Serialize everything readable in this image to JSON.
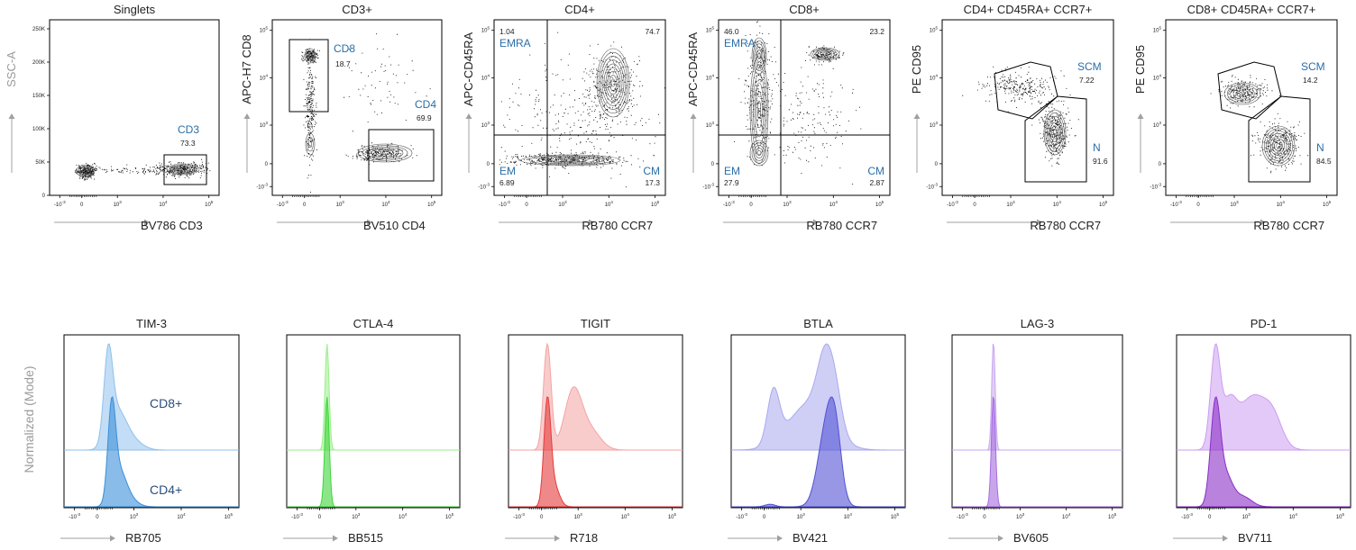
{
  "colors": {
    "frame": "#000000",
    "gate_label": "#2a6ea8",
    "arrow": "#a0a0a0",
    "side_label": "#9a9a9a",
    "contour": "#555555",
    "dots": "#000000"
  },
  "labels": {
    "tick_neg3": "-10",
    "tick_0": "0",
    "tick_3": "10",
    "tick_4": "10",
    "tick_5": "10",
    "exp_neg3": "-3",
    "exp_3": "3",
    "exp_4": "4",
    "exp_5": "5",
    "ssc_ticks": [
      "250K",
      "200K",
      "150K",
      "100K",
      "50K",
      "0"
    ],
    "hist_side_label": "Normalized (Mode)"
  },
  "chart_data": [
    {
      "id": "singlets",
      "type": "scatter",
      "title": "Singlets",
      "xlabel": "BV786 CD3",
      "ylabel": "SSC-A",
      "xscale": "biexponential",
      "yscale": "linear",
      "ylim": [
        0,
        262144
      ],
      "gates": [
        {
          "name": "CD3",
          "value": "73.3"
        }
      ]
    },
    {
      "id": "cd3",
      "type": "scatter",
      "title": "CD3+",
      "xlabel": "BV510 CD4",
      "ylabel": "APC-H7 CD8",
      "xscale": "biexponential",
      "yscale": "biexponential",
      "gates": [
        {
          "name": "CD8",
          "value": "18.7"
        },
        {
          "name": "CD4",
          "value": "69.9"
        }
      ]
    },
    {
      "id": "cd4",
      "type": "scatter",
      "title": "CD4+",
      "xlabel": "RB780 CCR7",
      "ylabel": "APC-CD45RA",
      "xscale": "biexponential",
      "yscale": "biexponential",
      "quadrants": [
        {
          "name": "EMRA",
          "value": "1.04",
          "position": "top-left"
        },
        {
          "name": "",
          "value": "74.7",
          "position": "top-right"
        },
        {
          "name": "EM",
          "value": "6.89",
          "position": "bottom-left"
        },
        {
          "name": "CM",
          "value": "17.3",
          "position": "bottom-right"
        }
      ]
    },
    {
      "id": "cd8",
      "type": "scatter",
      "title": "CD8+",
      "xlabel": "RB780 CCR7",
      "ylabel": "APC-CD45RA",
      "xscale": "biexponential",
      "yscale": "biexponential",
      "quadrants": [
        {
          "name": "EMRA",
          "value": "46.0",
          "position": "top-left"
        },
        {
          "name": "",
          "value": "23.2",
          "position": "top-right"
        },
        {
          "name": "EM",
          "value": "27.9",
          "position": "bottom-left"
        },
        {
          "name": "CM",
          "value": "2.87",
          "position": "bottom-right"
        }
      ]
    },
    {
      "id": "cd4naive",
      "type": "scatter",
      "title": "CD4+ CD45RA+ CCR7+",
      "xlabel": "RB780 CCR7",
      "ylabel": "PE CD95",
      "xscale": "biexponential",
      "yscale": "biexponential",
      "gates": [
        {
          "name": "SCM",
          "value": "7.22"
        },
        {
          "name": "N",
          "value": "91.6"
        }
      ]
    },
    {
      "id": "cd8naive",
      "type": "scatter",
      "title": "CD8+ CD45RA+ CCR7+",
      "xlabel": "RB780 CCR7",
      "ylabel": "PE CD95",
      "xscale": "biexponential",
      "yscale": "biexponential",
      "gates": [
        {
          "name": "SCM",
          "value": "14.2"
        },
        {
          "name": "N",
          "value": "84.5"
        }
      ]
    },
    {
      "id": "tim3",
      "type": "histogram",
      "title": "TIM-3",
      "xlabel": "RB705",
      "ylabel": "Normalized (Mode)",
      "series": [
        {
          "name": "CD8+",
          "color": "#8fc1ec"
        },
        {
          "name": "CD4+",
          "color": "#3a8fd8"
        }
      ],
      "series_labels_shown": true
    },
    {
      "id": "ctla4",
      "type": "histogram",
      "title": "CTLA-4",
      "xlabel": "BB515",
      "ylabel": "Normalized (Mode)",
      "series": [
        {
          "name": "CD8+",
          "color": "#9aef8a"
        },
        {
          "name": "CD4+",
          "color": "#3ed63a"
        }
      ],
      "series_labels_shown": false
    },
    {
      "id": "tigit",
      "type": "histogram",
      "title": "TIGIT",
      "xlabel": "R718",
      "ylabel": "Normalized (Mode)",
      "series": [
        {
          "name": "CD8+",
          "color": "#f4a3a3"
        },
        {
          "name": "CD4+",
          "color": "#e53b3b"
        }
      ],
      "series_labels_shown": false
    },
    {
      "id": "btla",
      "type": "histogram",
      "title": "BTLA",
      "xlabel": "BV421",
      "ylabel": "Normalized (Mode)",
      "series": [
        {
          "name": "CD8+",
          "color": "#a8a8ef"
        },
        {
          "name": "CD4+",
          "color": "#5252d6"
        }
      ],
      "series_labels_shown": false
    },
    {
      "id": "lag3",
      "type": "histogram",
      "title": "LAG-3",
      "xlabel": "BV605",
      "ylabel": "Normalized (Mode)",
      "series": [
        {
          "name": "CD8+",
          "color": "#c7a8ef"
        },
        {
          "name": "CD4+",
          "color": "#a56be0"
        }
      ],
      "series_labels_shown": false
    },
    {
      "id": "pd1",
      "type": "histogram",
      "title": "PD-1",
      "xlabel": "BV711",
      "ylabel": "Normalized (Mode)",
      "series": [
        {
          "name": "CD8+",
          "color": "#cc9df0"
        },
        {
          "name": "CD4+",
          "color": "#8a2fc6"
        }
      ],
      "series_labels_shown": false
    }
  ]
}
